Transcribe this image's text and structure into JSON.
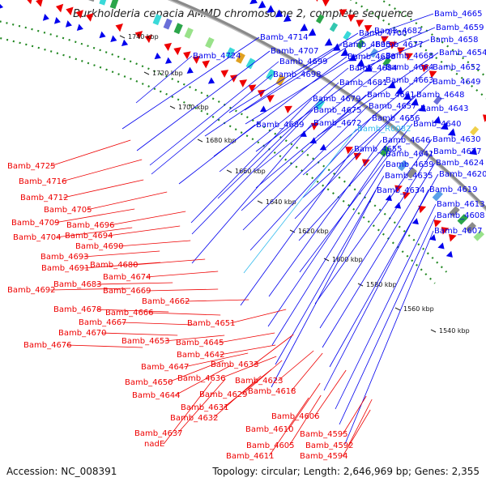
{
  "title": "Burkholderia cepacia AMMD chromosome 2, complete sequence",
  "accession": "Accession: NC_008391",
  "summary": "Topology: circular; Length: 2,646,969 bp; Genes: 2,355",
  "colors": {
    "forward": "#0000ee",
    "reverse": "#ee0000",
    "highlight": "#33bbee",
    "backbone": "#777777",
    "dotted_ring": "#228822"
  },
  "kbp_ticks": [
    "1740 kbp",
    "1720 kbp",
    "1700 kbp",
    "1680 kbp",
    "1660 kbp",
    "1640 kbp",
    "1620 kbp",
    "1600 kbp",
    "1580 kbp",
    "1560 kbp",
    "1540 kbp"
  ],
  "forward_labels": [
    "Bamb_4665",
    "Bamb_4659",
    "Bamb_4658",
    "Bamb_4714",
    "Bamb_4700",
    "Bamb_4682",
    "Bamb_4695",
    "Bamb_4677",
    "Bamb_4654",
    "Bamb_4724",
    "Bamb_4707",
    "Bamb_4688",
    "Bamb_4668",
    "Bamb_4699",
    "Bamb_4684",
    "Bamb_4664",
    "Bamb_4652",
    "Bamb_4698",
    "Bamb_4663",
    "Bamb_4649",
    "Bamb_4681",
    "Bamb_4661",
    "Bamb_4648",
    "Bamb_4679",
    "Bamb_4657",
    "Bamb_4643",
    "Bamb_4675",
    "Bamb_4656",
    "Bamb_4689",
    "Bamb_4672",
    "Bamb_R0082",
    "Bamb_4640",
    "Bamb_4646",
    "Bamb_4630",
    "Bamb_4655",
    "Bamb_4641",
    "Bamb_4627",
    "Bamb_4639",
    "Bamb_4624",
    "Bamb_4635",
    "Bamb_4620",
    "Bamb_4634",
    "Bamb_4619",
    "Bamb_4613",
    "Bamb_4608",
    "Bamb_4607"
  ],
  "highlight_label": "Bamb_R0082",
  "reverse_labels": [
    "Bamb_4725",
    "Bamb_4716",
    "Bamb_4712",
    "Bamb_4705",
    "Bamb_4709",
    "Bamb_4696",
    "Bamb_4704",
    "Bamb_4694",
    "Bamb_4690",
    "Bamb_4693",
    "Bamb_4691",
    "Bamb_4680",
    "Bamb_4674",
    "Bamb_4683",
    "Bamb_4692",
    "Bamb_4669",
    "Bamb_4662",
    "Bamb_4678",
    "Bamb_4666",
    "Bamb_4667",
    "Bamb_4670",
    "Bamb_4676",
    "Bamb_4651",
    "Bamb_4653",
    "Bamb_4645",
    "Bamb_4642",
    "Bamb_4647",
    "Bamb_4633",
    "Bamb_4636",
    "Bamb_4650",
    "Bamb_4623",
    "Bamb_4644",
    "Bamb_4629",
    "Bamb_4618",
    "Bamb_4631",
    "Bamb_4632",
    "Bamb_4606",
    "Bamb_4610",
    "Bamb_4637",
    "Bamb_4595",
    "nadE",
    "Bamb_4605",
    "Bamb_4592",
    "Bamb_4611",
    "Bamb_4594"
  ]
}
